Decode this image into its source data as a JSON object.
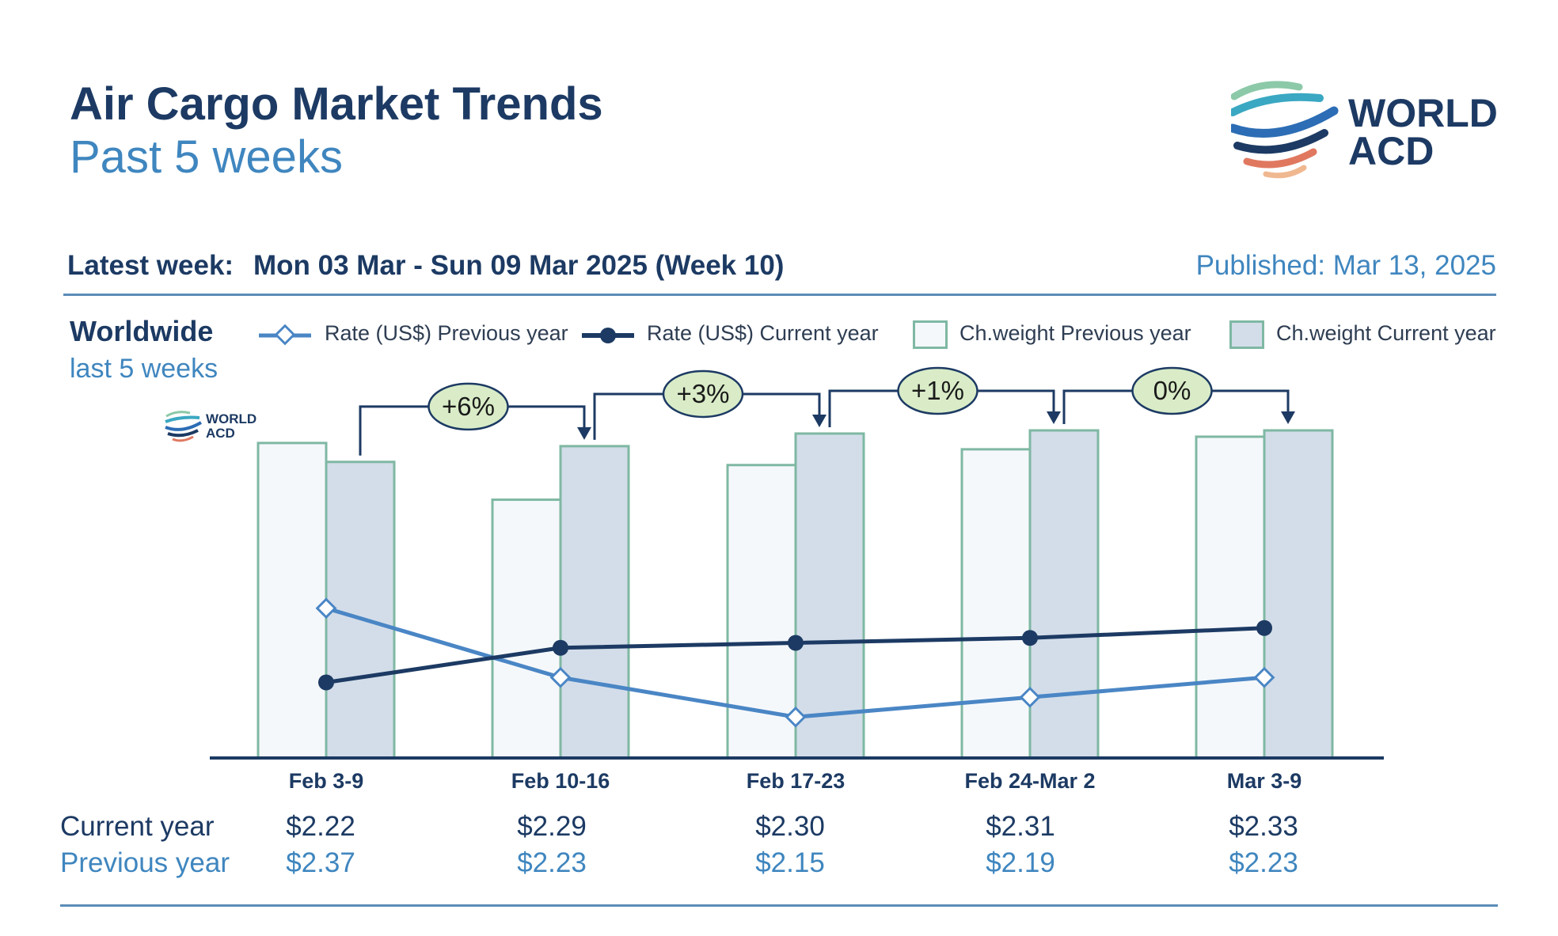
{
  "header": {
    "title": "Air Cargo Market Trends",
    "subtitle": "Past 5 weeks",
    "latest_label": "Latest week:",
    "latest_value": "Mon 03 Mar - Sun 09 Mar 2025 (Week 10)",
    "published": "Published: Mar 13, 2025"
  },
  "logo": {
    "line1": "WORLD",
    "line2": "ACD"
  },
  "section": {
    "region": "Worldwide",
    "period": "last 5 weeks"
  },
  "legend": {
    "rate_prev": "Rate (US$) Previous year",
    "rate_cur": "Rate (US$) Current year",
    "weight_prev": "Ch.weight Previous year",
    "weight_cur": "Ch.weight Current year"
  },
  "table": {
    "current_label": "Current year",
    "previous_label": "Previous year"
  },
  "colors": {
    "navy": "#1c3a63",
    "accent_blue": "#3f86bf",
    "bar_prev_fill": "#f5f8fb",
    "bar_cur_fill": "#d3dde9",
    "bar_stroke": "#7fb8a3",
    "bubble_fill": "#d9ecc7",
    "line_current": "#1c3a63",
    "line_previous": "#4a86c5"
  },
  "chart_data": {
    "type": "bar",
    "categories": [
      "Feb 3-9",
      "Feb 10-16",
      "Feb 17-23",
      "Feb 24-Mar 2",
      "Mar 3-9"
    ],
    "series": [
      {
        "name": "Ch.weight Previous year",
        "kind": "bar",
        "values": [
          100,
          82,
          93,
          98,
          102
        ]
      },
      {
        "name": "Ch.weight Current year",
        "kind": "bar",
        "values": [
          94,
          99,
          103,
          104,
          104
        ]
      },
      {
        "name": "Rate (US$) Previous year",
        "kind": "line",
        "marker": "diamond",
        "values": [
          2.37,
          2.23,
          2.15,
          2.19,
          2.23
        ]
      },
      {
        "name": "Rate (US$) Current year",
        "kind": "line",
        "marker": "circle",
        "values": [
          2.22,
          2.29,
          2.3,
          2.31,
          2.33
        ]
      }
    ],
    "rate_labels_current": [
      "$2.22",
      "$2.29",
      "$2.30",
      "$2.31",
      "$2.33"
    ],
    "rate_labels_previous": [
      "$2.37",
      "$2.23",
      "$2.15",
      "$2.19",
      "$2.23"
    ],
    "week_changes": [
      "+6%",
      "+3%",
      "+1%",
      "0%"
    ],
    "legend_position": "top"
  }
}
